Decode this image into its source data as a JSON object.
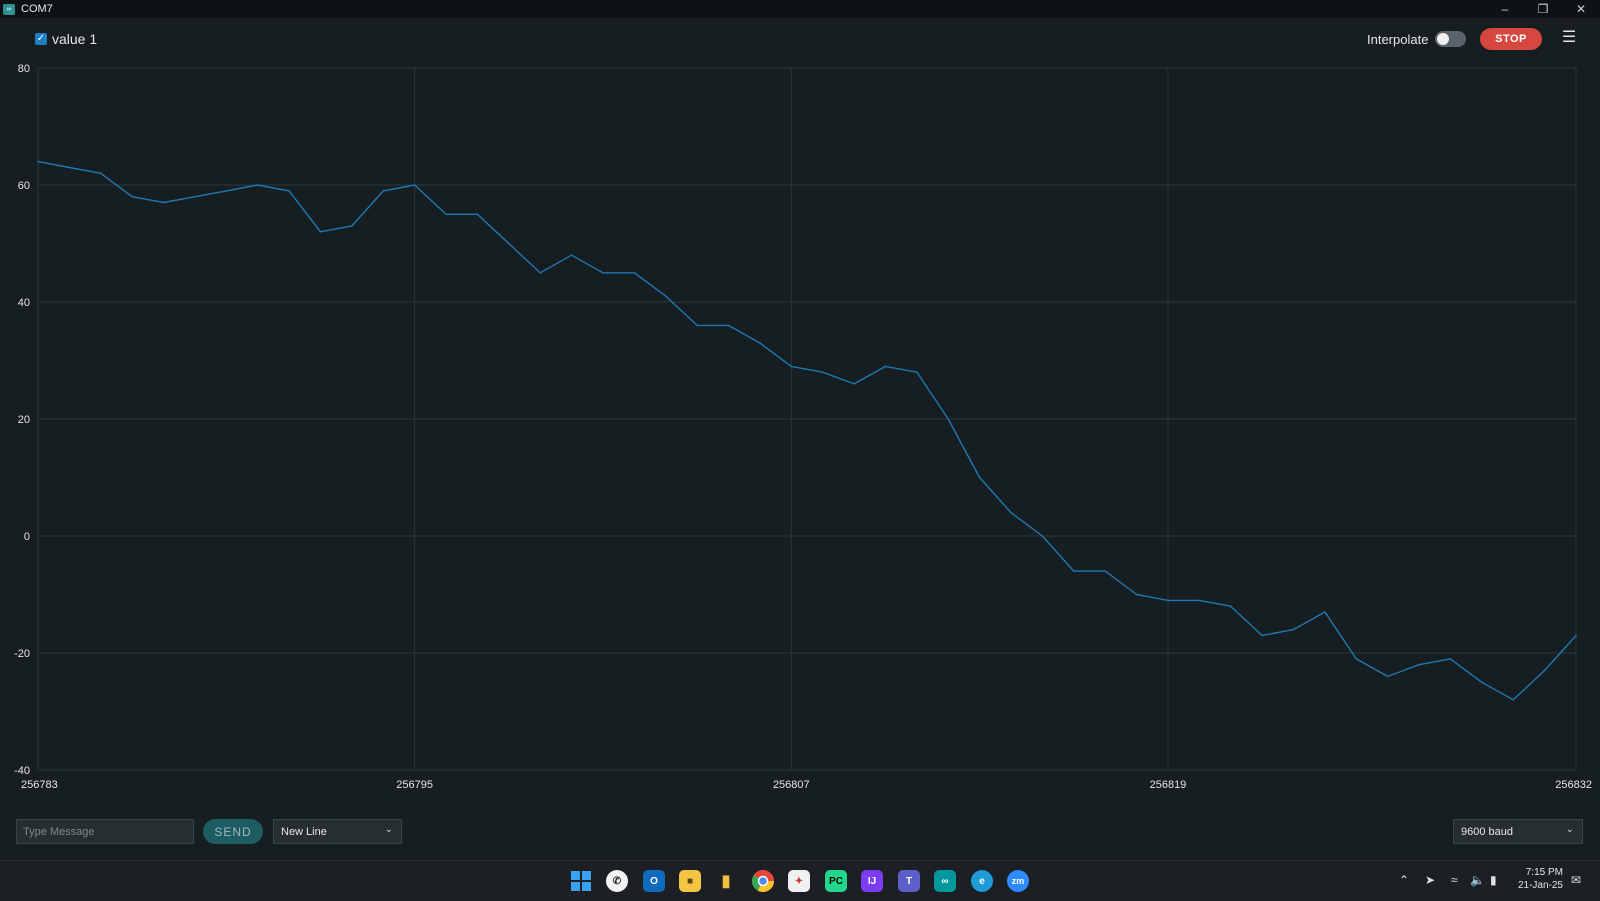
{
  "window": {
    "title": "COM7",
    "app_icon": "arduino-icon",
    "controls": [
      "minimize-icon",
      "restore-icon",
      "close-icon"
    ]
  },
  "header": {
    "series_checkbox_checked": true,
    "series_label": "value 1",
    "interpolate_label": "Interpolate",
    "interpolate_on": false,
    "stop_label": "STOP",
    "menu_icon": "list-menu-icon"
  },
  "colors": {
    "background": "#171e21",
    "line": "#1d78b4",
    "stop": "#d6473f",
    "send": "#1d5d62",
    "checkbox": "#1e7fc2"
  },
  "chart_data": {
    "type": "line",
    "x": [
      256783,
      256784,
      256785,
      256786,
      256787,
      256788,
      256789,
      256790,
      256791,
      256792,
      256793,
      256794,
      256795,
      256796,
      256797,
      256798,
      256799,
      256800,
      256801,
      256802,
      256803,
      256804,
      256805,
      256806,
      256807,
      256808,
      256809,
      256810,
      256811,
      256812,
      256813,
      256814,
      256815,
      256816,
      256817,
      256818,
      256819,
      256820,
      256821,
      256822,
      256823,
      256824,
      256825,
      256826,
      256827,
      256828,
      256829,
      256830,
      256831,
      256832
    ],
    "series": [
      {
        "name": "value 1",
        "values": [
          64,
          63,
          62,
          58,
          57,
          58,
          59,
          60,
          59,
          52,
          53,
          59,
          60,
          55,
          55,
          50,
          45,
          48,
          45,
          45,
          41,
          36,
          36,
          33,
          29,
          28,
          26,
          29,
          28,
          20,
          10,
          4,
          0,
          -6,
          -6,
          -10,
          -11,
          -11,
          -12,
          -17,
          -16,
          -13,
          -21,
          -24,
          -22,
          -21,
          -25,
          -28,
          -23,
          -17
        ]
      }
    ],
    "ylim": [
      -40,
      80
    ],
    "yticks": [
      "80",
      "60",
      "40",
      "20",
      "0",
      "-20",
      "-40"
    ],
    "xticks": [
      "256783",
      "256795",
      "256807",
      "256819",
      "256832"
    ],
    "xlim": [
      256783,
      256832
    ],
    "grid": true
  },
  "footer": {
    "message_placeholder": "Type Message",
    "send_label": "SEND",
    "line_ending": "New Line",
    "baud": "9600 baud"
  },
  "taskbar": {
    "apps": [
      "windows-start-icon",
      "whatsapp-icon",
      "outlook-icon",
      "file-explorer-icon",
      "files-icon",
      "chrome-icon",
      "app-icon",
      "pycharm-icon",
      "intellij-icon",
      "teams-icon",
      "arduino-icon",
      "edge-icon",
      "zoom-icon"
    ],
    "tray_icons": [
      "chevron-up-icon",
      "location-icon",
      "wifi-icon",
      "mute-icon",
      "battery-icon",
      "notification-icon"
    ],
    "time": "7:15 PM",
    "date": "21-Jan-25"
  }
}
